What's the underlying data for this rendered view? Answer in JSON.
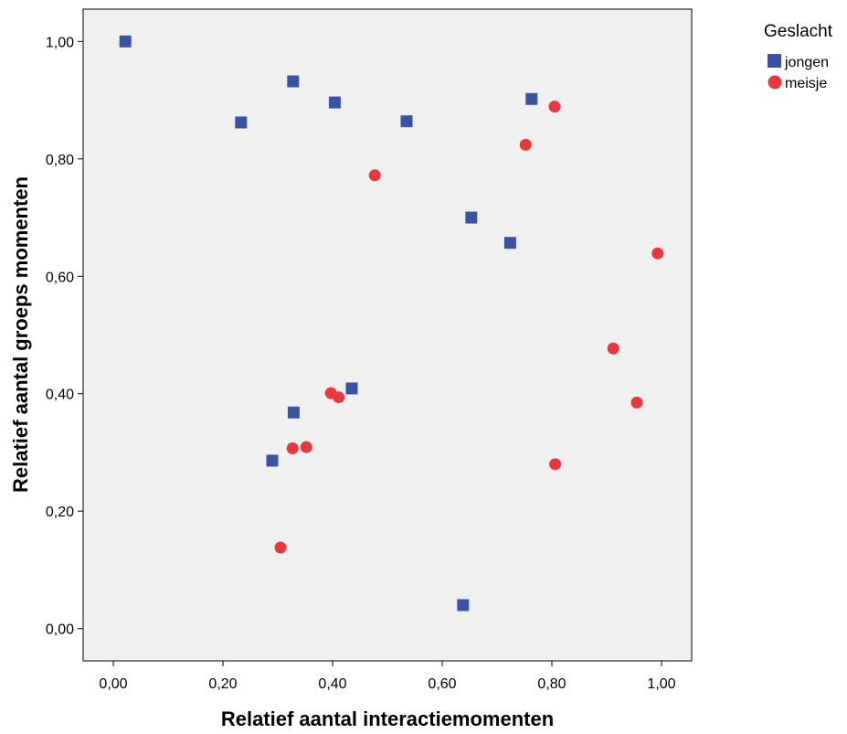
{
  "chart_data": {
    "type": "scatter",
    "title": "",
    "xlabel": "Relatief aantal interactiemomenten",
    "ylabel": "Relatief aantal groeps momenten",
    "xlim": [
      -0.055,
      1.055
    ],
    "ylim": [
      -0.055,
      1.055
    ],
    "x_ticks": [
      0,
      0.2,
      0.4,
      0.6,
      0.8,
      1.0
    ],
    "x_tick_labels": [
      "0,00",
      "0,20",
      "0,40",
      "0,60",
      "0,80",
      "1,00"
    ],
    "y_ticks": [
      0,
      0.2,
      0.4,
      0.6,
      0.8,
      1.0
    ],
    "y_tick_labels": [
      "0,00",
      "0,20",
      "0,40",
      "0,60",
      "0,80",
      "1,00"
    ],
    "grid": false,
    "legend": {
      "title": "Geslacht",
      "placement": "top-right-outside"
    },
    "series": [
      {
        "name": "jongen",
        "marker": "square",
        "color": "#3953a4",
        "points": [
          [
            0.022,
            1.0
          ],
          [
            0.233,
            0.862
          ],
          [
            0.328,
            0.932
          ],
          [
            0.404,
            0.896
          ],
          [
            0.535,
            0.864
          ],
          [
            0.763,
            0.902
          ],
          [
            0.653,
            0.7
          ],
          [
            0.724,
            0.657
          ],
          [
            0.435,
            0.409
          ],
          [
            0.329,
            0.368
          ],
          [
            0.29,
            0.286
          ],
          [
            0.638,
            0.04
          ]
        ]
      },
      {
        "name": "meisje",
        "marker": "circle",
        "color": "#e8383d",
        "points": [
          [
            0.805,
            0.889
          ],
          [
            0.752,
            0.824
          ],
          [
            0.477,
            0.772
          ],
          [
            0.993,
            0.639
          ],
          [
            0.912,
            0.477
          ],
          [
            0.955,
            0.385
          ],
          [
            0.397,
            0.401
          ],
          [
            0.411,
            0.394
          ],
          [
            0.327,
            0.307
          ],
          [
            0.352,
            0.309
          ],
          [
            0.806,
            0.28
          ],
          [
            0.305,
            0.138
          ]
        ]
      }
    ]
  },
  "colors": {
    "plot_background": "#f0f0f0",
    "axis": "#000000"
  }
}
